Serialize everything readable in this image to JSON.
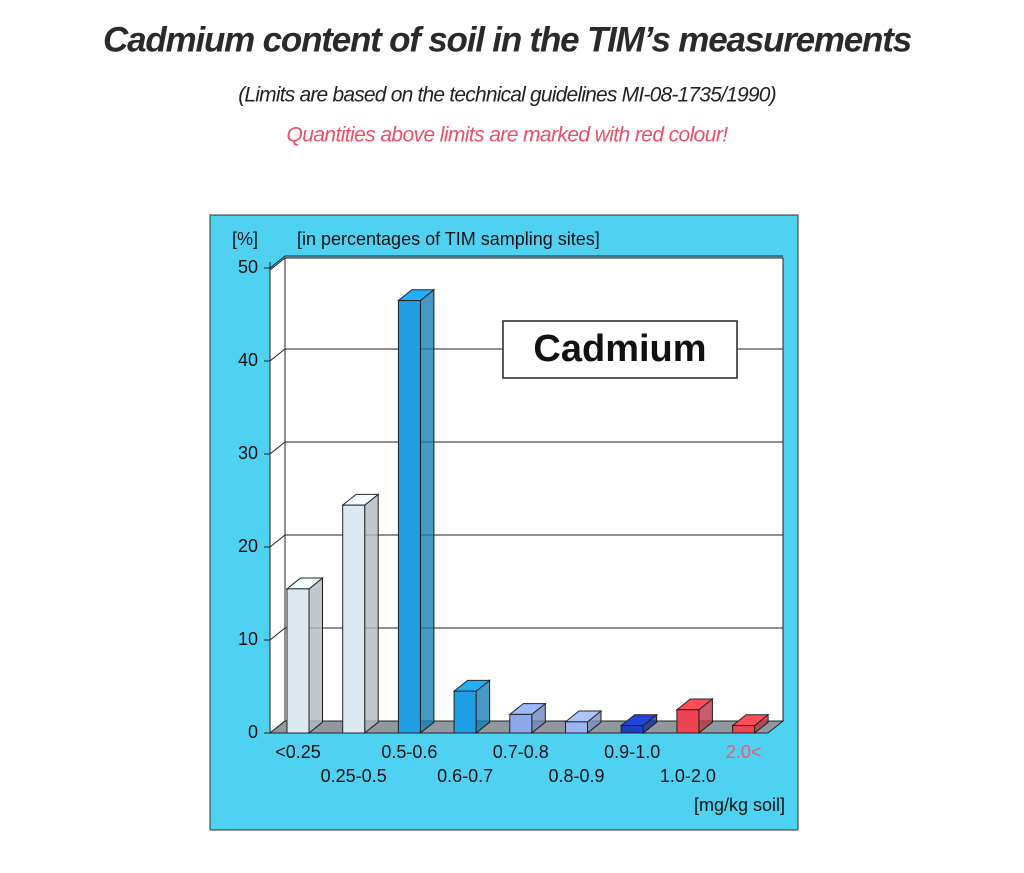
{
  "chart_data": {
    "type": "bar3d",
    "title": "Cadmium content of soil in the TIM’s measurements",
    "subtitle": "(Limits are based on the technical guidelines MI-08-1735/1990)",
    "note": "Quantities above limits are marked with red colour!",
    "y_label": "[%]",
    "annotation": "[in percentages of TIM sampling sites]",
    "box_label": "Cadmium",
    "x_label": "[mg/kg soil]",
    "categories": [
      "<0.25",
      "0.25-0.5",
      "0.5-0.6",
      "0.6-0.7",
      "0.7-0.8",
      "0.8-0.9",
      "0.9-1.0",
      "1.0-2.0",
      "2.0<"
    ],
    "values": [
      15.5,
      24.5,
      46.5,
      4.5,
      2,
      1.2,
      0.8,
      2.5,
      0.8
    ],
    "colors": [
      "#dde9f1",
      "#dde9f1",
      "#1e9fe3",
      "#1e9fe3",
      "#8ea8ee",
      "#9db3f0",
      "#1d3fc4",
      "#ee4452",
      "#ee4452"
    ],
    "x_label_colors": [
      "#111111",
      "#111111",
      "#111111",
      "#111111",
      "#111111",
      "#111111",
      "#111111",
      "#111111",
      "#ee5a6e"
    ],
    "ylim": [
      0,
      50
    ],
    "yticks": [
      0,
      10,
      20,
      30,
      40,
      50
    ],
    "grid": true
  }
}
